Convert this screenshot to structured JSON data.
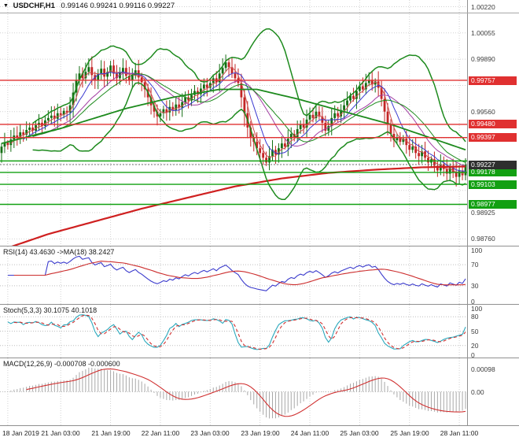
{
  "window": {
    "dropdown_icon": "▼",
    "symbol": "USDCHF,H1",
    "ohlc": "0.99146 0.99241 0.99116 0.99227"
  },
  "colors": {
    "background": "#ffffff",
    "grid": "#d2d2d2",
    "panel_border": "#909090",
    "axis_text": "#3c3c3c",
    "bull": "#156e15",
    "bear": "#c22525",
    "bollinger": "#1d8a1d",
    "ma_trend_red": "#cf2020",
    "ma_long_green": "#1d8a1d",
    "ma_fast_blue": "#3b3bd0",
    "ma_fast_purple": "#a23ca2",
    "ma_fast_red": "#d05050",
    "level_resistance": "#e03030",
    "level_support": "#12a012",
    "current_price_bg": "#2e2e2e",
    "rsi_line": "#3a3acc",
    "rsi_ma": "#cc2e2e",
    "stoch_k": "#2aa8bc",
    "stoch_d": "#d03030",
    "macd_hist": "#a8a8a8",
    "macd_signal": "#d03030"
  },
  "price_axis": {
    "ticks": [
      {
        "v": 1.0022,
        "t": "1.00220"
      },
      {
        "v": 1.00055,
        "t": "1.00055"
      },
      {
        "v": 0.9989,
        "t": "0.99890"
      },
      {
        "v": 0.9956,
        "t": "0.99560"
      },
      {
        "v": 0.98925,
        "t": "0.98925"
      },
      {
        "v": 0.9876,
        "t": "0.98760"
      }
    ],
    "grid_values": [
      1.0022,
      1.00055,
      0.9989,
      0.99725,
      0.9956,
      0.99395,
      0.9923,
      0.99065,
      0.98925,
      0.9876
    ],
    "resistance_levels": [
      {
        "v": 0.99757,
        "t": "0.99757"
      },
      {
        "v": 0.9948,
        "t": "0.99480"
      },
      {
        "v": 0.99397,
        "t": "0.99397"
      }
    ],
    "support_levels": [
      {
        "v": 0.9925,
        "t": ""
      },
      {
        "v": 0.99178,
        "t": "0.99178"
      },
      {
        "v": 0.99103,
        "t": "0.99103"
      },
      {
        "v": 0.98977,
        "t": "0.98977"
      }
    ],
    "current_price": {
      "v": 0.99227,
      "t": "0.99227"
    }
  },
  "panels": {
    "rsi": {
      "label": "RSI(14) 43.4630 ->MA(18) 38.2427",
      "ticks": [
        100,
        70,
        30,
        0
      ],
      "levels": [
        70,
        30
      ]
    },
    "stoch": {
      "label": "Stoch(5,3,3) 30.1075 40.1018",
      "ticks": [
        100,
        80,
        50,
        20,
        0
      ],
      "levels": [
        80,
        50,
        20
      ]
    },
    "macd": {
      "label": "MACD(12,26,9) -0.000708 -0.000600",
      "ticks": [
        {
          "v": 0.00098,
          "t": "0.00098"
        },
        {
          "v": 0,
          "t": "0.00"
        }
      ]
    }
  },
  "chart_data": [
    {
      "type": "candlestick",
      "symbol": "USDCHF",
      "timeframe": "H1",
      "ylim": [
        0.98717,
        1.00262
      ],
      "current_bar": {
        "open": 0.99146,
        "high": 0.99241,
        "low": 0.99116,
        "close": 0.99227
      },
      "x_labels": [
        {
          "bar": 2,
          "text": "18 Jan 2019"
        },
        {
          "bar": 19,
          "text": "21 Jan 03:00"
        },
        {
          "bar": 35,
          "text": "21 Jan 19:00"
        },
        {
          "bar": 51,
          "text": "22 Jan 11:00"
        },
        {
          "bar": 67,
          "text": "23 Jan 03:00"
        },
        {
          "bar": 83,
          "text": "23 Jan 19:00"
        },
        {
          "bar": 99,
          "text": "24 Jan 11:00"
        },
        {
          "bar": 115,
          "text": "25 Jan 03:00"
        },
        {
          "bar": 131,
          "text": "25 Jan 19:00"
        },
        {
          "bar": 147,
          "text": "28 Jan 11:00"
        }
      ],
      "closes": [
        0.9934,
        0.99365,
        0.9935,
        0.99385,
        0.9941,
        0.99395,
        0.9943,
        0.99415,
        0.99445,
        0.9946,
        0.9944,
        0.99475,
        0.9949,
        0.9947,
        0.99505,
        0.9952,
        0.99535,
        0.99515,
        0.9955,
        0.9954,
        0.99565,
        0.99555,
        0.996,
        0.9968,
        0.9976,
        0.998,
        0.9977,
        0.9981,
        0.9984,
        0.9979,
        0.9976,
        0.998,
        0.9983,
        0.9978,
        0.9981,
        0.9985,
        0.998,
        0.9977,
        0.99805,
        0.99835,
        0.99785,
        0.99755,
        0.9979,
        0.9982,
        0.99775,
        0.99745,
        0.997,
        0.9965,
        0.996,
        0.9956,
        0.9953,
        0.9955,
        0.99575,
        0.99555,
        0.9959,
        0.9957,
        0.99605,
        0.99585,
        0.9962,
        0.9965,
        0.9963,
        0.99665,
        0.9969,
        0.9967,
        0.99705,
        0.9973,
        0.9971,
        0.9974,
        0.9977,
        0.99745,
        0.998,
        0.99835,
        0.9987,
        0.9984,
        0.998,
        0.9977,
        0.9974,
        0.9965,
        0.9955,
        0.9946,
        0.994,
        0.9937,
        0.9933,
        0.993,
        0.9927,
        0.9924,
        0.9928,
        0.9932,
        0.9929,
        0.9933,
        0.9936,
        0.9934,
        0.9939,
        0.9942,
        0.994,
        0.9945,
        0.9948,
        0.9946,
        0.9951,
        0.9954,
        0.9952,
        0.9956,
        0.9953,
        0.9949,
        0.9944,
        0.9947,
        0.9952,
        0.9955,
        0.9953,
        0.9957,
        0.996,
        0.9963,
        0.9966,
        0.9964,
        0.9969,
        0.9972,
        0.997,
        0.9974,
        0.9976,
        0.9973,
        0.9975,
        0.9971,
        0.9964,
        0.9956,
        0.9948,
        0.9942,
        0.9938,
        0.994,
        0.9937,
        0.9939,
        0.9935,
        0.9932,
        0.9934,
        0.993,
        0.9928,
        0.9931,
        0.9927,
        0.9924,
        0.9926,
        0.9922,
        0.9919,
        0.9923,
        0.992,
        0.9917,
        0.9921,
        0.9918,
        0.9915,
        0.9919,
        0.9916,
        0.99227
      ],
      "overlays": {
        "bollinger": {
          "period": 20,
          "deviation": 2.2
        },
        "sma_periods": {
          "red": 4,
          "blue": 8,
          "purple": 16
        },
        "long_ma_red": [
          [
            0,
            0.9869
          ],
          [
            15,
            0.9879
          ],
          [
            30,
            0.9887
          ],
          [
            45,
            0.9895
          ],
          [
            60,
            0.9902
          ],
          [
            75,
            0.9909
          ],
          [
            90,
            0.9914
          ],
          [
            105,
            0.99175
          ],
          [
            120,
            0.99195
          ],
          [
            135,
            0.9921
          ],
          [
            149,
            0.99215
          ]
        ],
        "long_ma_green": [
          [
            0,
            0.9936
          ],
          [
            20,
            0.9946
          ],
          [
            40,
            0.9958
          ],
          [
            55,
            0.9965
          ],
          [
            70,
            0.997
          ],
          [
            82,
            0.997
          ],
          [
            95,
            0.9964
          ],
          [
            110,
            0.9956
          ],
          [
            125,
            0.9948
          ],
          [
            149,
            0.9932
          ]
        ]
      },
      "levels": {
        "resistance": [
          0.99757,
          0.9948,
          0.99397
        ],
        "support": [
          0.9925,
          0.99178,
          0.99103,
          0.98977
        ],
        "current": 0.99227
      }
    },
    {
      "type": "line",
      "name": "RSI",
      "params": [
        14
      ],
      "ma_period": 18,
      "current": 43.463,
      "ma_current": 38.2427,
      "ylim": [
        0,
        100
      ],
      "derived_from": "closes"
    },
    {
      "type": "line",
      "name": "Stochastic",
      "params": [
        5,
        3,
        3
      ],
      "k_current": 30.1075,
      "d_current": 40.1018,
      "ylim": [
        0,
        100
      ],
      "derived_from": "closes"
    },
    {
      "type": "macd",
      "params": [
        12,
        26,
        9
      ],
      "macd_current": -0.000708,
      "signal_current": -0.0006,
      "ylim": [
        -0.00125,
        0.00125
      ],
      "derived_from": "closes"
    }
  ]
}
